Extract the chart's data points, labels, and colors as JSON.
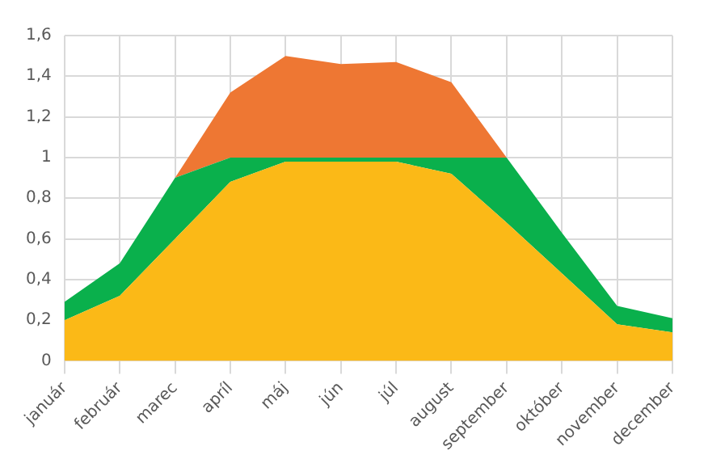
{
  "chart_data": {
    "type": "area",
    "stacked": true,
    "categories": [
      "január",
      "február",
      "marec",
      "apríl",
      "máj",
      "jún",
      "júl",
      "august",
      "september",
      "október",
      "november",
      "december"
    ],
    "series": [
      {
        "color": "#fbb917",
        "values": [
          0.2,
          0.32,
          0.6,
          0.88,
          0.98,
          0.98,
          0.98,
          0.92,
          0.68,
          0.43,
          0.18,
          0.14
        ]
      },
      {
        "color": "#0ab04c",
        "values": [
          0.09,
          0.16,
          0.3,
          0.12,
          0.02,
          0.02,
          0.02,
          0.08,
          0.32,
          0.2,
          0.09,
          0.07
        ]
      },
      {
        "color": "#ee7733",
        "values": [
          0,
          0,
          0,
          0.32,
          0.5,
          0.46,
          0.47,
          0.37,
          0,
          0,
          0,
          0
        ]
      }
    ],
    "ylim": [
      0,
      1.6
    ],
    "yticks": [
      0,
      {
        "value": 0.2,
        "label": "0,2"
      },
      {
        "value": 0.4,
        "label": "0,4"
      },
      {
        "value": 0.6,
        "label": "0,6"
      },
      {
        "value": 0.8,
        "label": "0,8"
      },
      1,
      {
        "value": 1.2,
        "label": "1,2"
      },
      {
        "value": 1.4,
        "label": "1,4"
      },
      {
        "value": 1.6,
        "label": "1,6"
      }
    ],
    "grid": true,
    "legend": false
  }
}
